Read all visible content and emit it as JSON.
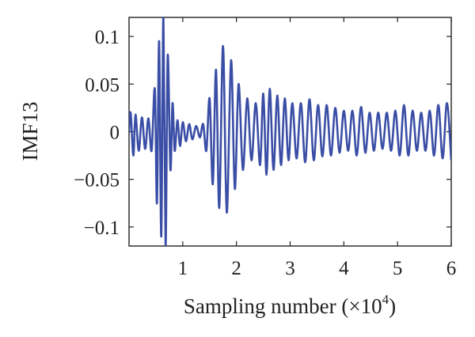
{
  "chart_data": {
    "type": "line",
    "title": "",
    "xlabel": "Sampling number (×10",
    "xlabel_exponent": "4",
    "xlabel_suffix": ")",
    "ylabel": "IMF13",
    "xlim": [
      0,
      6
    ],
    "ylim": [
      -0.12,
      0.12
    ],
    "x_ticks": [
      1,
      2,
      3,
      4,
      5,
      6
    ],
    "x_tick_labels": [
      "1",
      "2",
      "3",
      "4",
      "5",
      "6"
    ],
    "y_ticks": [
      0.1,
      0.05,
      0,
      -0.05,
      -0.1
    ],
    "y_tick_labels": [
      "0.1",
      "0.05",
      "0",
      "−0.05",
      "−0.1"
    ],
    "grid": false,
    "series": [
      {
        "color": "#3b4ea6",
        "x": [
          0,
          0.03,
          0.08,
          0.12,
          0.18,
          0.24,
          0.3,
          0.36,
          0.42,
          0.48,
          0.52,
          0.56,
          0.6,
          0.64,
          0.68,
          0.72,
          0.77,
          0.81,
          0.85,
          0.9,
          0.95,
          1.0,
          1.06,
          1.12,
          1.18,
          1.25,
          1.32,
          1.38,
          1.44,
          1.5,
          1.56,
          1.62,
          1.68,
          1.75,
          1.82,
          1.9,
          1.97,
          2.04,
          2.12,
          2.2,
          2.28,
          2.36,
          2.44,
          2.5,
          2.56,
          2.62,
          2.69,
          2.76,
          2.83,
          2.9,
          2.97,
          3.04,
          3.12,
          3.2,
          3.28,
          3.36,
          3.44,
          3.52,
          3.6,
          3.68,
          3.76,
          3.84,
          3.92,
          4.0,
          4.08,
          4.16,
          4.24,
          4.32,
          4.4,
          4.48,
          4.56,
          4.64,
          4.72,
          4.8,
          4.88,
          4.96,
          5.04,
          5.12,
          5.2,
          5.28,
          5.36,
          5.44,
          5.52,
          5.6,
          5.68,
          5.76,
          5.84,
          5.92,
          6.0
        ],
        "y": [
          0.0,
          0.02,
          -0.025,
          0.018,
          -0.02,
          0.015,
          -0.018,
          0.014,
          -0.02,
          0.045,
          -0.075,
          0.095,
          -0.11,
          0.125,
          -0.12,
          0.08,
          -0.04,
          0.03,
          -0.02,
          0.012,
          -0.015,
          0.01,
          -0.01,
          0.008,
          -0.008,
          0.006,
          -0.006,
          0.008,
          -0.02,
          0.035,
          -0.055,
          0.065,
          -0.08,
          0.09,
          -0.085,
          0.075,
          -0.06,
          0.05,
          -0.04,
          0.035,
          -0.03,
          0.03,
          -0.035,
          0.04,
          -0.045,
          0.045,
          -0.04,
          0.038,
          -0.035,
          0.035,
          -0.03,
          0.03,
          -0.028,
          0.03,
          -0.032,
          0.034,
          -0.03,
          0.028,
          -0.026,
          0.028,
          -0.025,
          0.025,
          -0.022,
          0.022,
          -0.02,
          0.022,
          -0.025,
          0.026,
          -0.022,
          0.02,
          -0.02,
          0.02,
          -0.018,
          0.02,
          -0.02,
          0.022,
          -0.025,
          0.028,
          -0.025,
          0.022,
          -0.02,
          0.02,
          -0.02,
          0.022,
          -0.025,
          0.028,
          -0.028,
          0.03,
          -0.03
        ]
      }
    ]
  }
}
